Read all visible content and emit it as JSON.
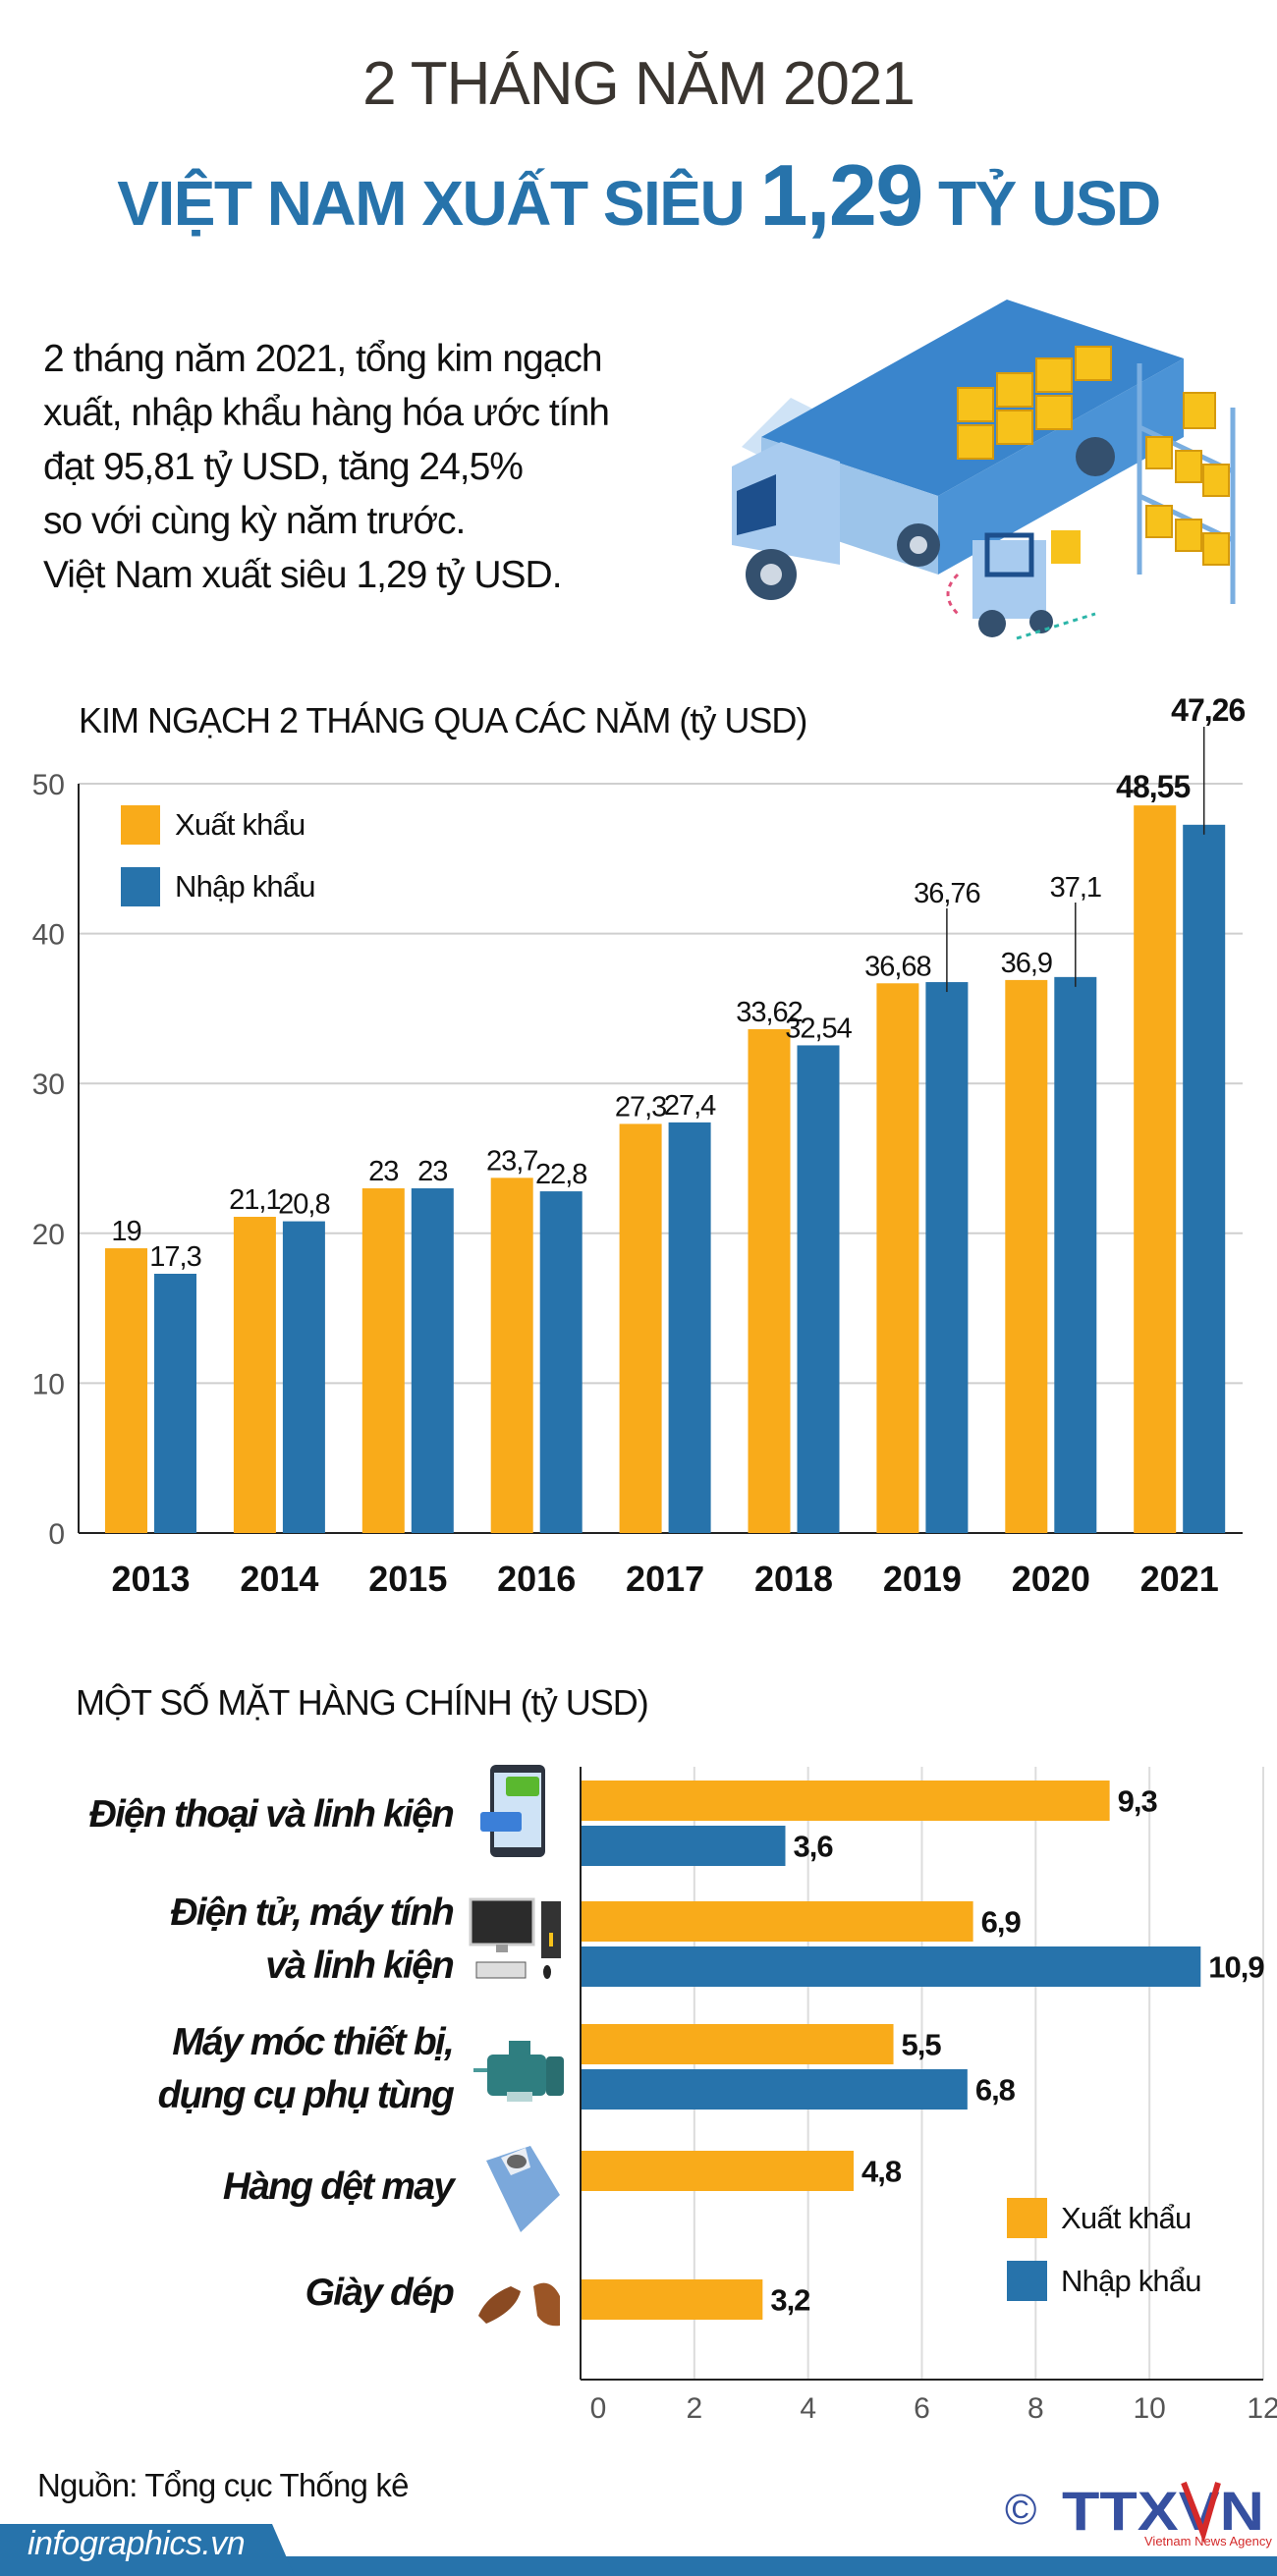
{
  "header": {
    "title_line1": "2 THÁNG NĂM 2021",
    "title_line2_prefix": "VIỆT NAM XUẤT SIÊU ",
    "title_line2_number": "1,29",
    "title_line2_suffix": " TỶ USD"
  },
  "intro": {
    "lines": [
      "2 tháng năm 2021, tổng kim ngạch",
      "xuất, nhập khẩu hàng hóa ước tính",
      "đạt 95,81 tỷ USD, tăng 24,5%",
      "so với cùng kỳ năm trước.",
      "Việt Nam xuất siêu 1,29 tỷ USD."
    ]
  },
  "illustration": {
    "icon": "truck-forklift-warehouse-illustration"
  },
  "colors": {
    "export": "#f9ab1a",
    "import": "#2773ab",
    "title_blue": "#2773ab",
    "grid": "#cfcfcf"
  },
  "chart_data": [
    {
      "type": "bar",
      "title": "KIM NGẠCH 2 THÁNG QUA CÁC NĂM (tỷ USD)",
      "categories": [
        "2013",
        "2014",
        "2015",
        "2016",
        "2017",
        "2018",
        "2019",
        "2020",
        "2021"
      ],
      "series": [
        {
          "name": "Xuất khẩu",
          "values": [
            19,
            21.1,
            23,
            23.7,
            27.3,
            33.62,
            36.68,
            36.9,
            48.55
          ],
          "labels": [
            "19",
            "21,1",
            "23",
            "23,7",
            "27,3",
            "33,62",
            "36,68",
            "36,9",
            "48,55"
          ]
        },
        {
          "name": "Nhập khẩu",
          "values": [
            17.3,
            20.8,
            23,
            22.8,
            27.4,
            32.54,
            36.76,
            37.1,
            47.26
          ],
          "labels": [
            "17,3",
            "20,8",
            "23",
            "22,8",
            "27,4",
            "32,54",
            "36,76",
            "37,1",
            "47,26"
          ]
        }
      ],
      "yticks": [
        "0",
        "10",
        "20",
        "30",
        "40",
        "50"
      ],
      "ylim": [
        0,
        50
      ],
      "grid": true,
      "orientation": "vertical",
      "legend": "top-left"
    },
    {
      "type": "bar",
      "orientation": "horizontal",
      "title": "MỘT SỐ MẶT HÀNG CHÍNH (tỷ USD)",
      "categories": [
        {
          "lines": [
            "Điện thoại và linh kiện"
          ],
          "icon": "smartphone-icon"
        },
        {
          "lines": [
            "Điện tử, máy tính",
            "và linh kiện"
          ],
          "icon": "computer-icon"
        },
        {
          "lines": [
            "Máy móc thiết bị,",
            "dụng cụ phụ tùng"
          ],
          "icon": "electric-motor-icon"
        },
        {
          "lines": [
            "Hàng dệt may"
          ],
          "icon": "shirt-icon"
        },
        {
          "lines": [
            "Giày dép"
          ],
          "icon": "shoes-icon"
        }
      ],
      "series": [
        {
          "name": "Xuất khẩu",
          "values": [
            9.3,
            6.9,
            5.5,
            4.8,
            3.2
          ],
          "labels": [
            "9,3",
            "6,9",
            "5,5",
            "4,8",
            "3,2"
          ]
        },
        {
          "name": "Nhập khẩu",
          "values": [
            3.6,
            10.9,
            6.8,
            null,
            null
          ],
          "labels": [
            "3,6",
            "10,9",
            "6,8",
            null,
            null
          ]
        }
      ],
      "xticks": [
        "0",
        "2",
        "4",
        "6",
        "8",
        "10",
        "12"
      ],
      "xlim": [
        0,
        12
      ],
      "grid": true,
      "legend": "bottom-right"
    }
  ],
  "footer": {
    "source": "Nguồn: Tổng cục Thống kê",
    "site": "infographics.vn",
    "logo_text": "TTXVN",
    "logo_subtext": "Vietnam News Agency",
    "copyright": "©"
  }
}
